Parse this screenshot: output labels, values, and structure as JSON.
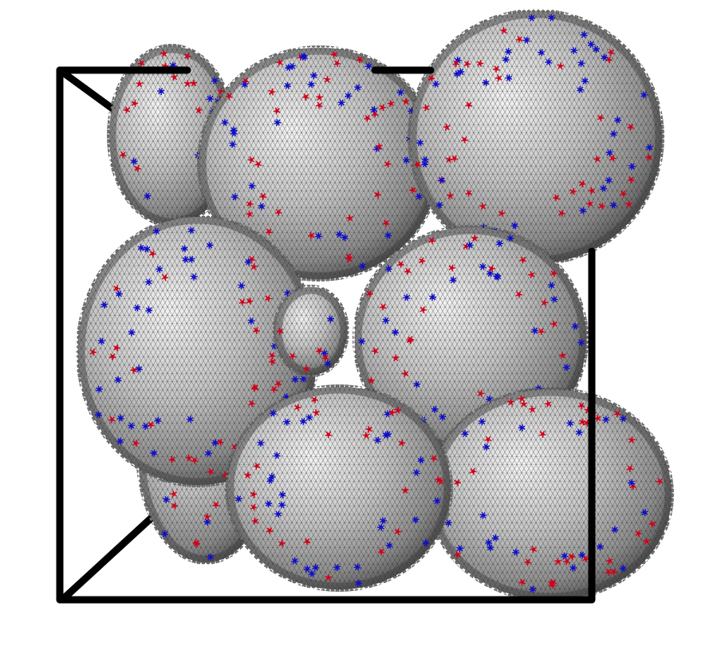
{
  "scene": {
    "background_color": "#ffffff",
    "box_color": "#000000",
    "shell_base_color": "#8a8a8a",
    "shell_highlight_color": "#f2f2f2",
    "shell_shadow_color": "#3c3c3c",
    "defect_colors": {
      "five_fold": "#d0021b",
      "seven_fold": "#1010c8"
    },
    "shell_count": 9
  }
}
